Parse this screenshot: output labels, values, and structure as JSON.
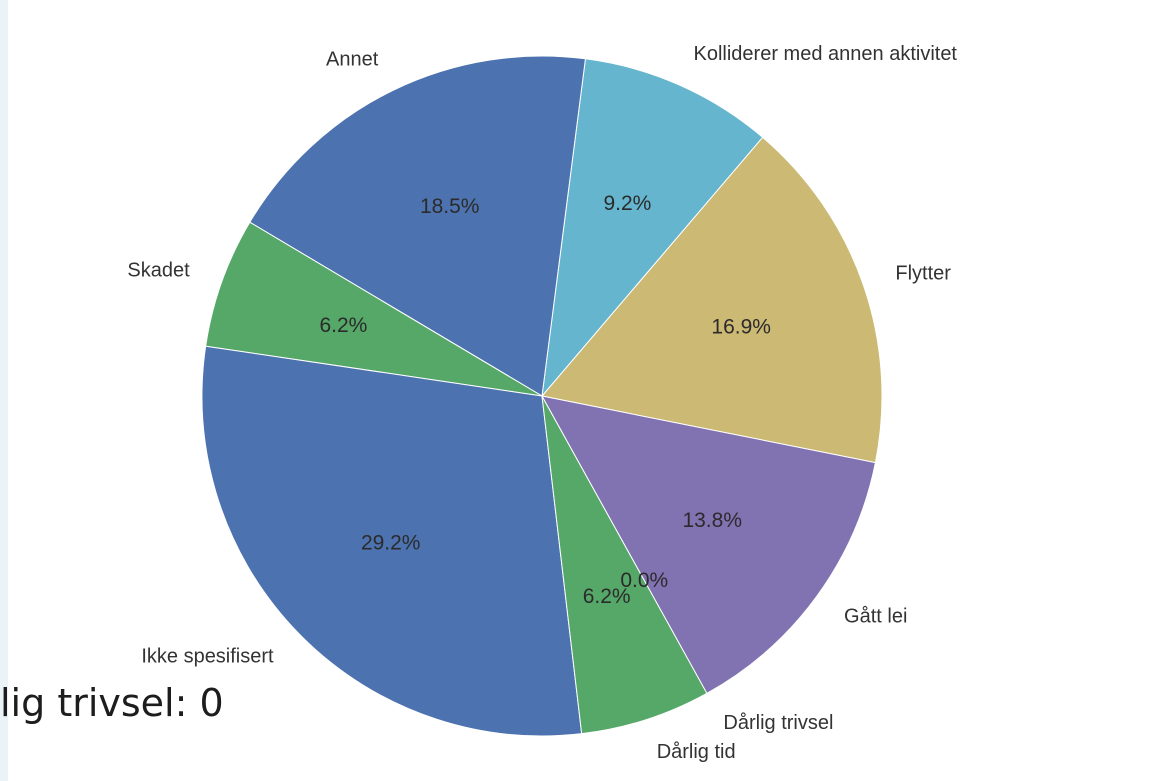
{
  "background_text": "lig trivsel: 0",
  "chart_data": {
    "type": "pie",
    "title": "",
    "slices": [
      {
        "label": "Flytter",
        "value": 16.9,
        "pct_label": "16.9%",
        "color": "#ccb974"
      },
      {
        "label": "Kolliderer med annen aktivitet",
        "value": 9.2,
        "pct_label": "9.2%",
        "color": "#64b5cd"
      },
      {
        "label": "Annet",
        "value": 18.5,
        "pct_label": "18.5%",
        "color": "#4c72b0"
      },
      {
        "label": "Skadet",
        "value": 6.2,
        "pct_label": "6.2%",
        "color": "#55a868"
      },
      {
        "label": "Ikke spesifisert",
        "value": 29.2,
        "pct_label": "29.2%",
        "color": "#4c72b0"
      },
      {
        "label": "Dårlig tid",
        "value": 6.2,
        "pct_label": "6.2%",
        "color": "#55a868"
      },
      {
        "label": "Dårlig trivsel",
        "value": 0.0,
        "pct_label": "0.0%",
        "color": "#c44e52"
      },
      {
        "label": "Gått lei",
        "value": 13.8,
        "pct_label": "13.8%",
        "color": "#8172b2"
      }
    ]
  }
}
